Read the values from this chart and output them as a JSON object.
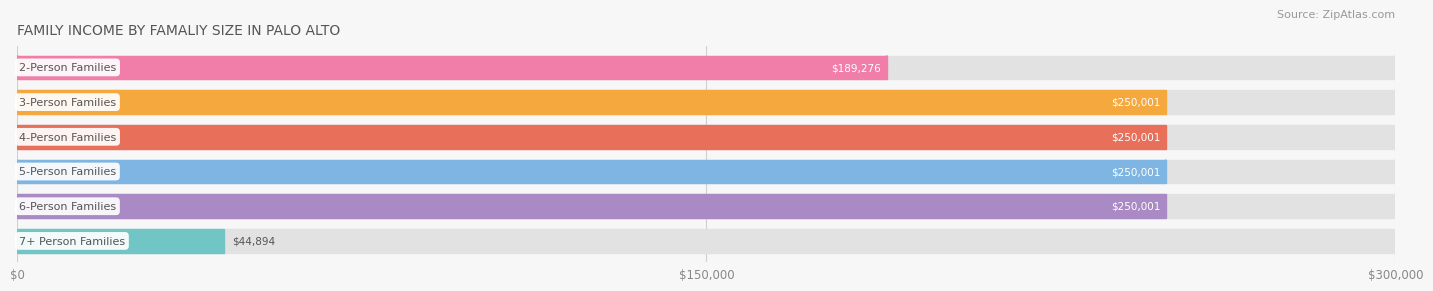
{
  "title": "FAMILY INCOME BY FAMALIY SIZE IN PALO ALTO",
  "source": "Source: ZipAtlas.com",
  "categories": [
    "2-Person Families",
    "3-Person Families",
    "4-Person Families",
    "5-Person Families",
    "6-Person Families",
    "7+ Person Families"
  ],
  "values": [
    189276,
    250001,
    250001,
    250001,
    250001,
    44894
  ],
  "bar_colors": [
    "#F07EA8",
    "#F5A83E",
    "#E8705A",
    "#7EB5E2",
    "#A98AC5",
    "#72C5C5"
  ],
  "value_labels": [
    "$189,276",
    "$250,001",
    "$250,001",
    "$250,001",
    "$250,001",
    "$44,894"
  ],
  "value_label_inside": [
    true,
    true,
    true,
    true,
    true,
    false
  ],
  "xmax": 300000,
  "xticks": [
    0,
    150000,
    300000
  ],
  "xtick_labels": [
    "$0",
    "$150,000",
    "$300,000"
  ],
  "background_color": "#F7F7F7",
  "bar_bg_color": "#E8E8E8",
  "title_fontsize": 10,
  "source_fontsize": 8,
  "label_fontsize": 8,
  "value_fontsize": 7.5,
  "tick_fontsize": 8.5
}
